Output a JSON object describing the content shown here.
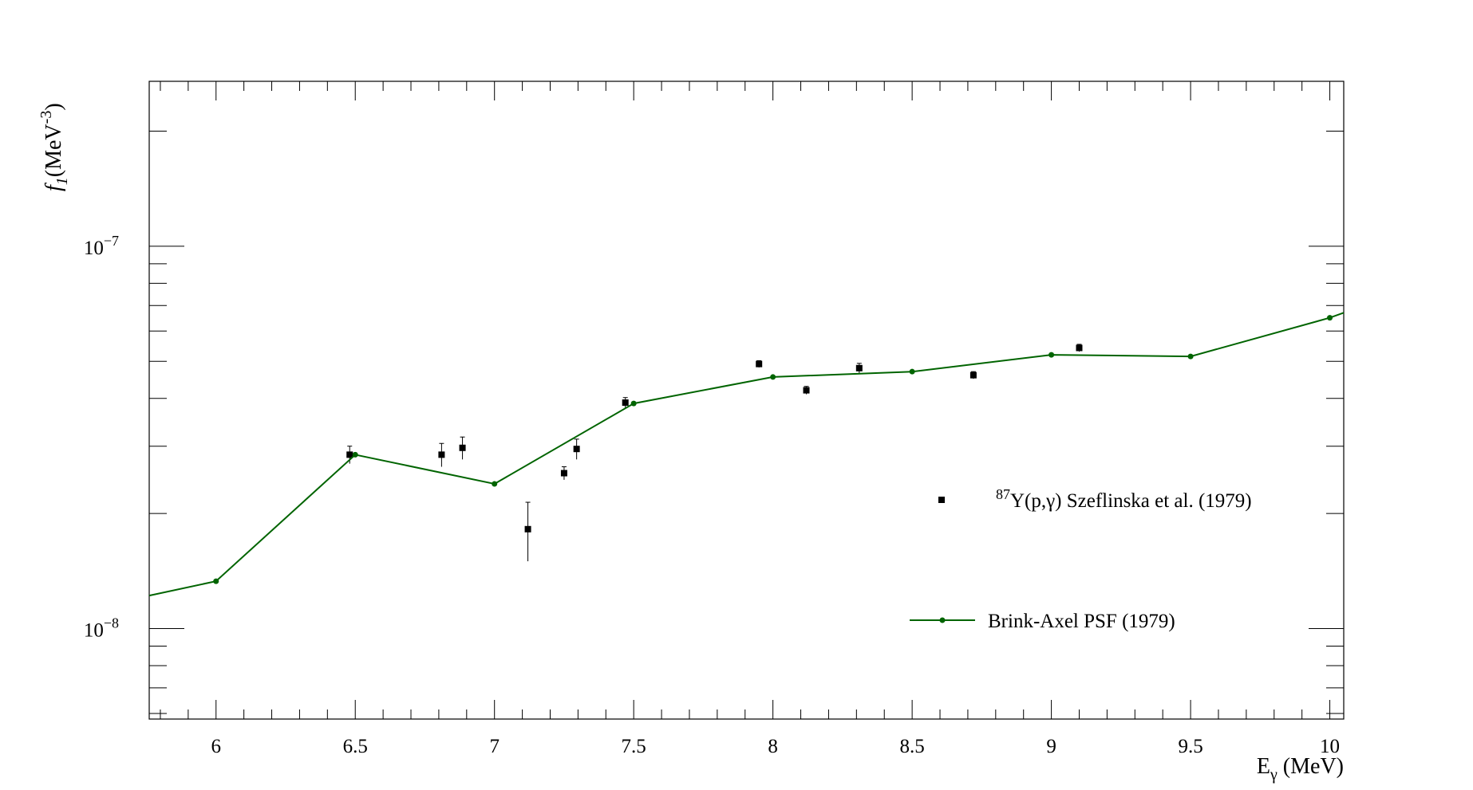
{
  "chart_data": {
    "type": "scatter",
    "title": "",
    "xlabel": {
      "main": "E",
      "sub": "γ",
      "unit": " (MeV)"
    },
    "ylabel": {
      "main": "f",
      "sub": "1",
      "unit": "(MeV",
      "sup": "-3",
      "close": ")"
    },
    "xlim": [
      5.76,
      10.05
    ],
    "ylim": [
      5.8e-09,
      2.7e-07
    ],
    "y_scale": "log",
    "x_ticks": [
      6,
      6.5,
      7,
      7.5,
      8,
      8.5,
      9,
      9.5,
      10
    ],
    "x_tick_labels": [
      "6",
      "6.5",
      "7",
      "7.5",
      "8",
      "8.5",
      "9",
      "9.5",
      "10"
    ],
    "y_ticks": [
      {
        "value": 1e-07,
        "base": "10",
        "exp": "−7"
      },
      {
        "value": 1e-08,
        "base": "10",
        "exp": "−8"
      }
    ],
    "grid": false,
    "legend_placement": "right",
    "series": [
      {
        "kind": "points-with-errors",
        "legend": {
          "sup": "87",
          "text": "Y(p,γ) Szeflinska et al. (1979)"
        },
        "color": "#000000",
        "x": [
          6.48,
          6.81,
          6.885,
          7.12,
          7.25,
          7.295,
          7.47,
          7.95,
          8.12,
          8.31,
          8.72,
          9.1
        ],
        "y": [
          2.85e-08,
          2.85e-08,
          2.97e-08,
          1.82e-08,
          2.55e-08,
          2.95e-08,
          3.9e-08,
          4.92e-08,
          4.2e-08,
          4.8e-08,
          4.6e-08,
          5.42e-08
        ],
        "yerr": [
          1.5e-09,
          2e-09,
          2e-09,
          3.2e-09,
          1e-09,
          1.8e-09,
          1.2e-09,
          1e-09,
          1e-09,
          1.4e-09,
          1e-09,
          1.2e-09
        ]
      },
      {
        "kind": "line-with-markers",
        "legend": {
          "text": "Brink-Axel PSF (1979)"
        },
        "color": "#006400",
        "x": [
          5.76,
          6.0,
          6.5,
          7.0,
          7.5,
          8.0,
          8.5,
          9.0,
          9.5,
          10.0,
          10.05
        ],
        "y": [
          1.22e-08,
          1.33e-08,
          2.85e-08,
          2.39e-08,
          3.88e-08,
          4.55e-08,
          4.7e-08,
          5.2e-08,
          5.15e-08,
          6.5e-08,
          6.7e-08
        ],
        "markers": [
          false,
          true,
          true,
          true,
          true,
          true,
          true,
          true,
          true,
          true,
          false
        ]
      }
    ]
  }
}
